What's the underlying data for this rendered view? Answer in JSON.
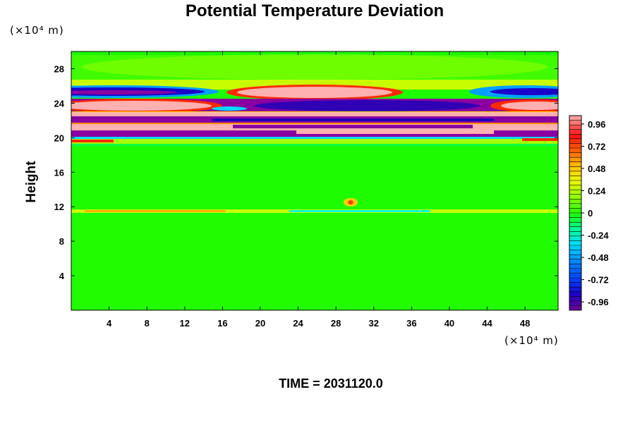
{
  "chart_data": {
    "type": "heatmap",
    "title": "Potential Temperature Deviation",
    "xlabel": "",
    "ylabel": "Height",
    "x_unit": "(×10⁴ m)",
    "y_unit": "(×10⁴ m)",
    "xlim": [
      0,
      51.5
    ],
    "ylim": [
      0,
      30
    ],
    "x_ticks": [
      4,
      8,
      12,
      16,
      20,
      24,
      28,
      32,
      36,
      40,
      44,
      48
    ],
    "y_ticks": [
      4,
      8,
      12,
      16,
      20,
      24,
      28
    ],
    "colorbar": {
      "range": [
        -1.05,
        1.05
      ],
      "tick_values": [
        0.96,
        0.72,
        0.48,
        0.24,
        0,
        -0.24,
        -0.48,
        -0.72,
        -0.96
      ],
      "tick_labels": [
        "0.96",
        "0.72",
        "0.48",
        "0.24",
        "0",
        "-0.24",
        "-0.48",
        "-0.72",
        "-0.96"
      ]
    },
    "footer": "TIME = 2031120.0"
  }
}
